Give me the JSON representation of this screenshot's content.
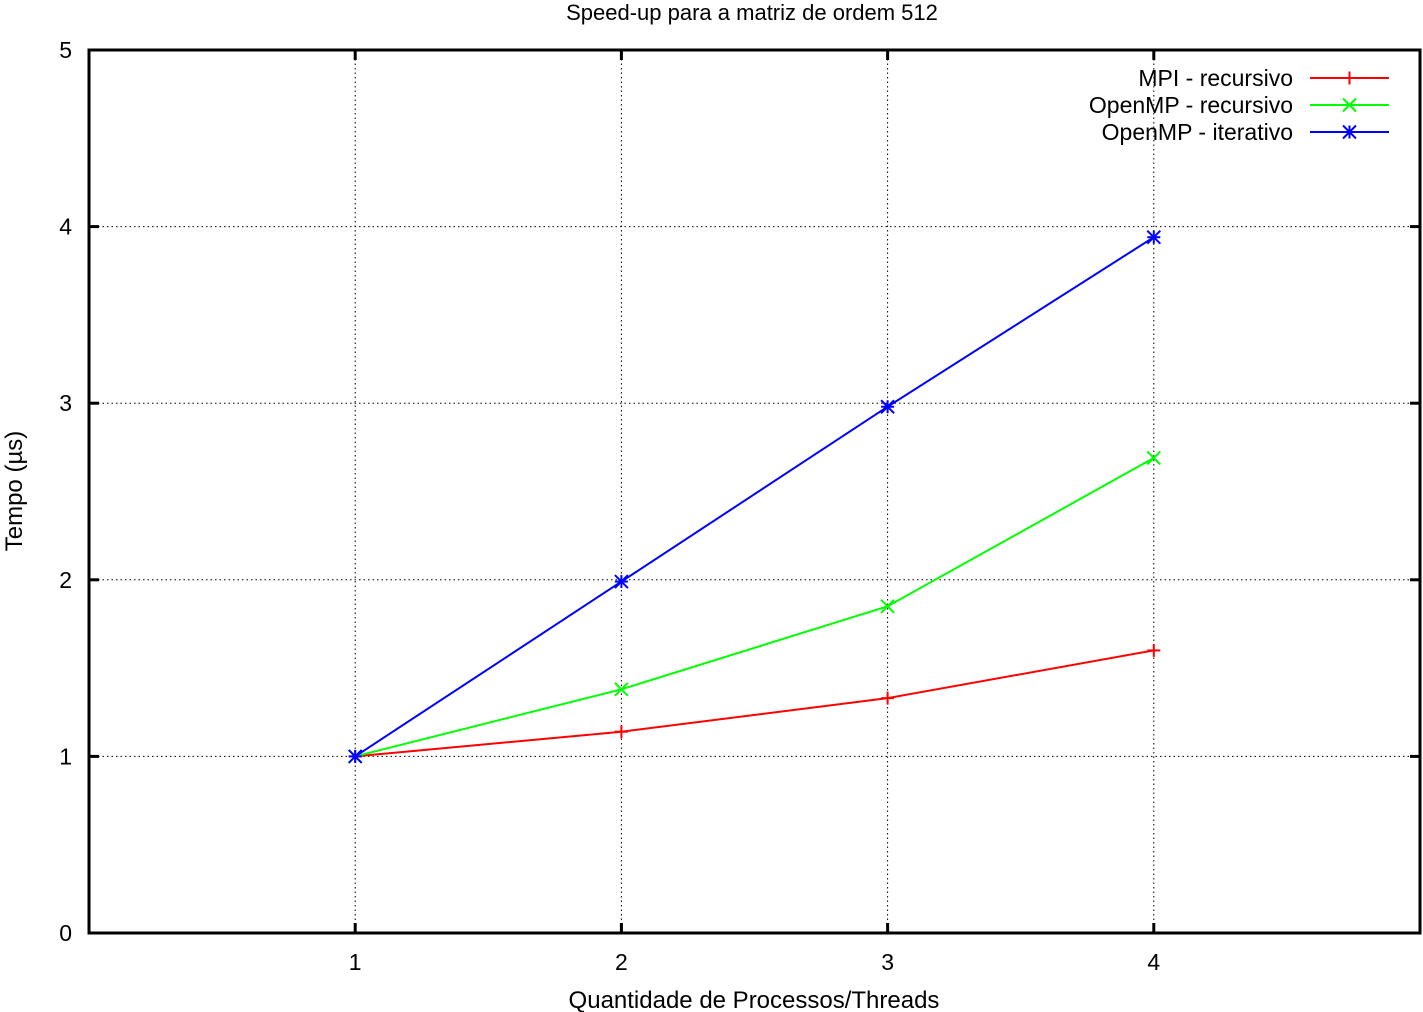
{
  "chart_data": {
    "type": "line",
    "title": "Speed-up para a matriz de ordem 512",
    "xlabel": "Quantidade de Processos/Threads",
    "ylabel": "Tempo (µs)",
    "xlim": [
      0,
      5
    ],
    "ylim": [
      0,
      5
    ],
    "x_ticks": [
      "1",
      "2",
      "3",
      "4"
    ],
    "y_ticks": [
      "0",
      "1",
      "2",
      "3",
      "4",
      "5"
    ],
    "grid": true,
    "legend_position": "top-right",
    "x": [
      1,
      2,
      3,
      4
    ],
    "series": [
      {
        "name": "MPI - recursivo",
        "color": "#ff0000",
        "marker": "plus",
        "values": [
          1.0,
          1.14,
          1.33,
          1.6
        ]
      },
      {
        "name": "OpenMP - recursivo",
        "color": "#00ff00",
        "marker": "cross",
        "values": [
          1.0,
          1.38,
          1.85,
          2.69
        ]
      },
      {
        "name": "OpenMP - iterativo",
        "color": "#0000ff",
        "marker": "star",
        "values": [
          1.0,
          1.99,
          2.98,
          3.94
        ]
      }
    ]
  }
}
